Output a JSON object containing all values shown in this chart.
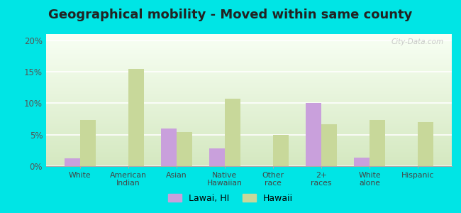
{
  "title": "Geographical mobility - Moved within same county",
  "categories": [
    "White",
    "American\nIndian",
    "Asian",
    "Native\nHawaiian",
    "Other\nrace",
    "2+\nraces",
    "White\nalone",
    "Hispanic"
  ],
  "lawai_values": [
    1.2,
    0.0,
    6.0,
    2.8,
    0.0,
    10.0,
    1.4,
    0.0
  ],
  "hawaii_values": [
    7.3,
    15.5,
    5.4,
    10.7,
    5.0,
    6.7,
    7.3,
    7.0
  ],
  "lawai_color": "#c9a0dc",
  "hawaii_color": "#c8d89a",
  "bg_outer": "#00e5e5",
  "title_fontsize": 13,
  "ylabel_ticks": [
    "0%",
    "5%",
    "10%",
    "15%",
    "20%"
  ],
  "ytick_vals": [
    0,
    5,
    10,
    15,
    20
  ],
  "ylim": [
    0,
    21
  ],
  "legend_labels": [
    "Lawai, HI",
    "Hawaii"
  ],
  "watermark": "City-Data.com"
}
